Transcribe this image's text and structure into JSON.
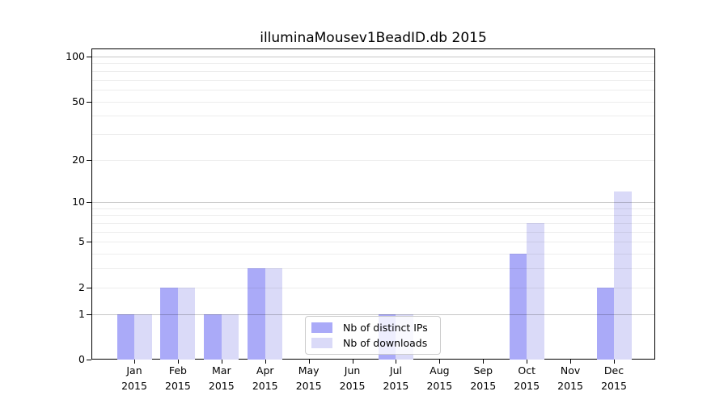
{
  "chart_data": {
    "type": "bar",
    "title": "illuminaMousev1BeadID.db 2015",
    "year": "2015",
    "categories": [
      "Jan",
      "Feb",
      "Mar",
      "Apr",
      "May",
      "Jun",
      "Jul",
      "Aug",
      "Sep",
      "Oct",
      "Nov",
      "Dec"
    ],
    "series": [
      {
        "name": "Nb of distinct IPs",
        "color": "#aaaaf8",
        "values": [
          1,
          2,
          1,
          3,
          0,
          0,
          1,
          0,
          0,
          4,
          0,
          2
        ]
      },
      {
        "name": "Nb of downloads",
        "color": "#dadaf8",
        "values": [
          1,
          2,
          1,
          3,
          0,
          0,
          1,
          0,
          0,
          7,
          0,
          12
        ]
      }
    ],
    "xlabel": "",
    "ylabel": "",
    "y_scale": "log1p",
    "ylim": [
      0,
      114
    ],
    "y_ticks": [
      0,
      1,
      2,
      5,
      10,
      20,
      50,
      100
    ],
    "y_major_grid": [
      1,
      10,
      100
    ],
    "y_minor_grid": [
      2,
      3,
      4,
      5,
      6,
      7,
      8,
      9,
      20,
      30,
      40,
      50,
      60,
      70,
      80,
      90
    ],
    "grid": "horizontal",
    "legend_position": "lower-center-inside"
  }
}
